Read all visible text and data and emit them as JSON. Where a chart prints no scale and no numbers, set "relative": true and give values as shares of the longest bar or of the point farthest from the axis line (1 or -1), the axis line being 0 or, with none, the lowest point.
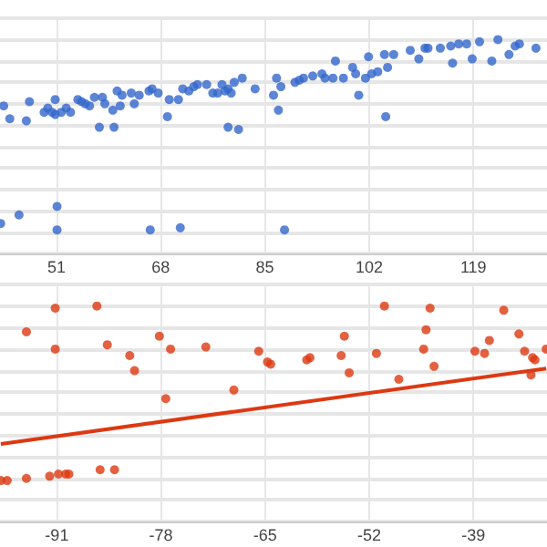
{
  "chart_data": [
    {
      "type": "scatter",
      "relative": true,
      "grid": true,
      "marker": "circle",
      "tick_labels": "x",
      "xlim": [
        41.8,
        131
      ],
      "xticks": [
        51,
        68,
        85,
        102,
        119
      ],
      "series": [
        {
          "color": "#3366cc",
          "x": [
            42.4,
            43.4,
            46.1,
            46.6,
            49.0,
            49.6,
            50.3,
            50.8,
            50.8,
            51.8,
            52.6,
            53.3,
            54.5,
            55.1,
            55.7,
            56.4,
            57.2,
            58.0,
            58.5,
            58.9,
            60.2,
            60.4,
            60.9,
            61.4,
            61.7,
            63.2,
            63.7,
            64.5,
            66.1,
            66.6,
            67.6,
            69.1,
            69.4,
            70.9,
            71.6,
            72.6,
            73.4,
            74.0,
            75.5,
            76.5,
            77.3,
            78.0,
            78.5,
            79.0,
            79.0,
            79.5,
            80.0,
            80.7,
            81.3,
            83.4,
            86.4,
            86.9,
            87.2,
            87.6,
            89.9,
            90.6,
            91.3,
            92.8,
            94.3,
            94.8,
            96.1,
            96.5,
            97.8,
            99.3,
            99.8,
            100.3,
            101.4,
            101.9,
            102.4,
            103.4,
            104.5,
            104.7,
            105.0,
            106.0,
            108.7,
            110.1,
            111.1,
            111.6,
            113.6,
            115.3,
            115.6,
            116.6,
            117.9,
            118.8,
            120.0,
            122.0,
            123.0,
            124.8,
            125.8,
            126.5,
            129.2,
            41.9,
            44.9,
            51.1,
            51.1,
            66.3,
            71.2,
            88.2
          ],
          "values": [
            0.69,
            0.63,
            0.62,
            0.71,
            0.66,
            0.68,
            0.66,
            0.72,
            0.65,
            0.66,
            0.68,
            0.66,
            0.72,
            0.71,
            0.7,
            0.69,
            0.73,
            0.59,
            0.73,
            0.7,
            0.67,
            0.59,
            0.76,
            0.69,
            0.74,
            0.75,
            0.7,
            0.74,
            0.76,
            0.77,
            0.75,
            0.64,
            0.72,
            0.72,
            0.77,
            0.76,
            0.78,
            0.79,
            0.79,
            0.75,
            0.75,
            0.79,
            0.76,
            0.77,
            0.59,
            0.75,
            0.8,
            0.58,
            0.82,
            0.77,
            0.74,
            0.82,
            0.67,
            0.78,
            0.8,
            0.81,
            0.82,
            0.83,
            0.84,
            0.82,
            0.82,
            0.9,
            0.82,
            0.87,
            0.84,
            0.74,
            0.82,
            0.92,
            0.84,
            0.85,
            0.93,
            0.64,
            0.87,
            0.93,
            0.95,
            0.91,
            0.96,
            0.96,
            0.96,
            0.97,
            0.89,
            0.98,
            0.98,
            0.91,
            0.99,
            0.9,
            1.0,
            0.93,
            0.97,
            0.98,
            0.96,
            0.14,
            0.18,
            0.22,
            0.11,
            0.11,
            0.12,
            0.11
          ]
        }
      ]
    },
    {
      "type": "scatter",
      "relative": true,
      "grid": true,
      "marker": "circle",
      "tick_labels": "x",
      "xlim": [
        -98.1,
        -29.8
      ],
      "xticks": [
        -91,
        -78,
        -65,
        -52,
        -39
      ],
      "series": [
        {
          "color": "#dc3912",
          "x": [
            -98.0,
            -97.2,
            -94.8,
            -91.9,
            -90.8,
            -89.9,
            -89.5,
            -85.6,
            -83.8,
            -94.8,
            -91.2,
            -91.2,
            -86.0,
            -84.7,
            -81.9,
            -81.3,
            -78.2,
            -77.4,
            -76.8,
            -72.4,
            -68.9,
            -65.8,
            -64.7,
            -64.3,
            -59.8,
            -59.4,
            -55.5,
            -55.1,
            -54.5,
            -51.1,
            -50.1,
            -48.3,
            -45.2,
            -44.9,
            -44.4,
            -43.9,
            -38.8,
            -37.6,
            -37.0,
            -35.2,
            -33.3,
            -32.6,
            -31.8,
            -31.6,
            -31.3,
            -29.9
          ],
          "values": [
            0.19,
            0.19,
            0.2,
            0.21,
            0.22,
            0.22,
            0.22,
            0.24,
            0.24,
            0.88,
            0.99,
            0.8,
            1.0,
            0.82,
            0.77,
            0.7,
            0.86,
            0.57,
            0.8,
            0.81,
            0.61,
            0.79,
            0.74,
            0.73,
            0.75,
            0.76,
            0.77,
            0.86,
            0.69,
            0.78,
            1.0,
            0.66,
            0.8,
            0.89,
            0.99,
            0.72,
            0.79,
            0.78,
            0.84,
            0.98,
            0.87,
            0.79,
            0.68,
            0.76,
            0.75,
            0.8
          ]
        },
        {
          "type": "line",
          "color": "#dc3912",
          "marker": "none",
          "x": [
            -98.0,
            -29.9
          ],
          "values": [
            0.36,
            0.71
          ]
        }
      ]
    }
  ]
}
